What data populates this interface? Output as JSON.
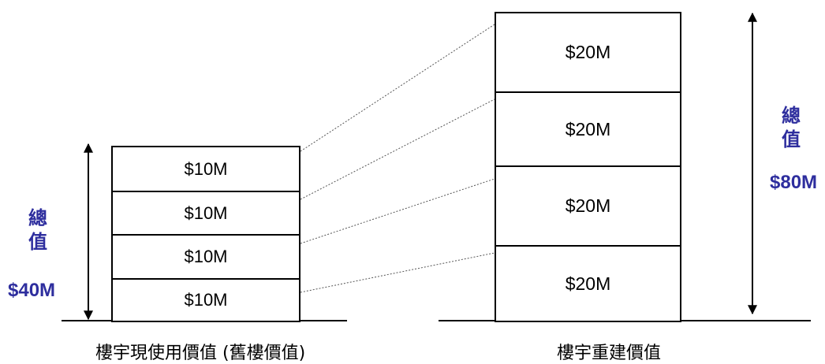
{
  "left_building": {
    "floors": [
      "$10M",
      "$10M",
      "$10M",
      "$10M"
    ],
    "total_label": "總值",
    "total_value": "$40M",
    "caption": "樓宇現使用價值 (舊樓價值)"
  },
  "right_building": {
    "floors": [
      "$20M",
      "$20M",
      "$20M",
      "$20M"
    ],
    "total_label": "總值",
    "total_value": "$80M",
    "caption": "樓宇重建價值"
  },
  "colors": {
    "accent": "#2e2e9e",
    "line": "#000000"
  }
}
